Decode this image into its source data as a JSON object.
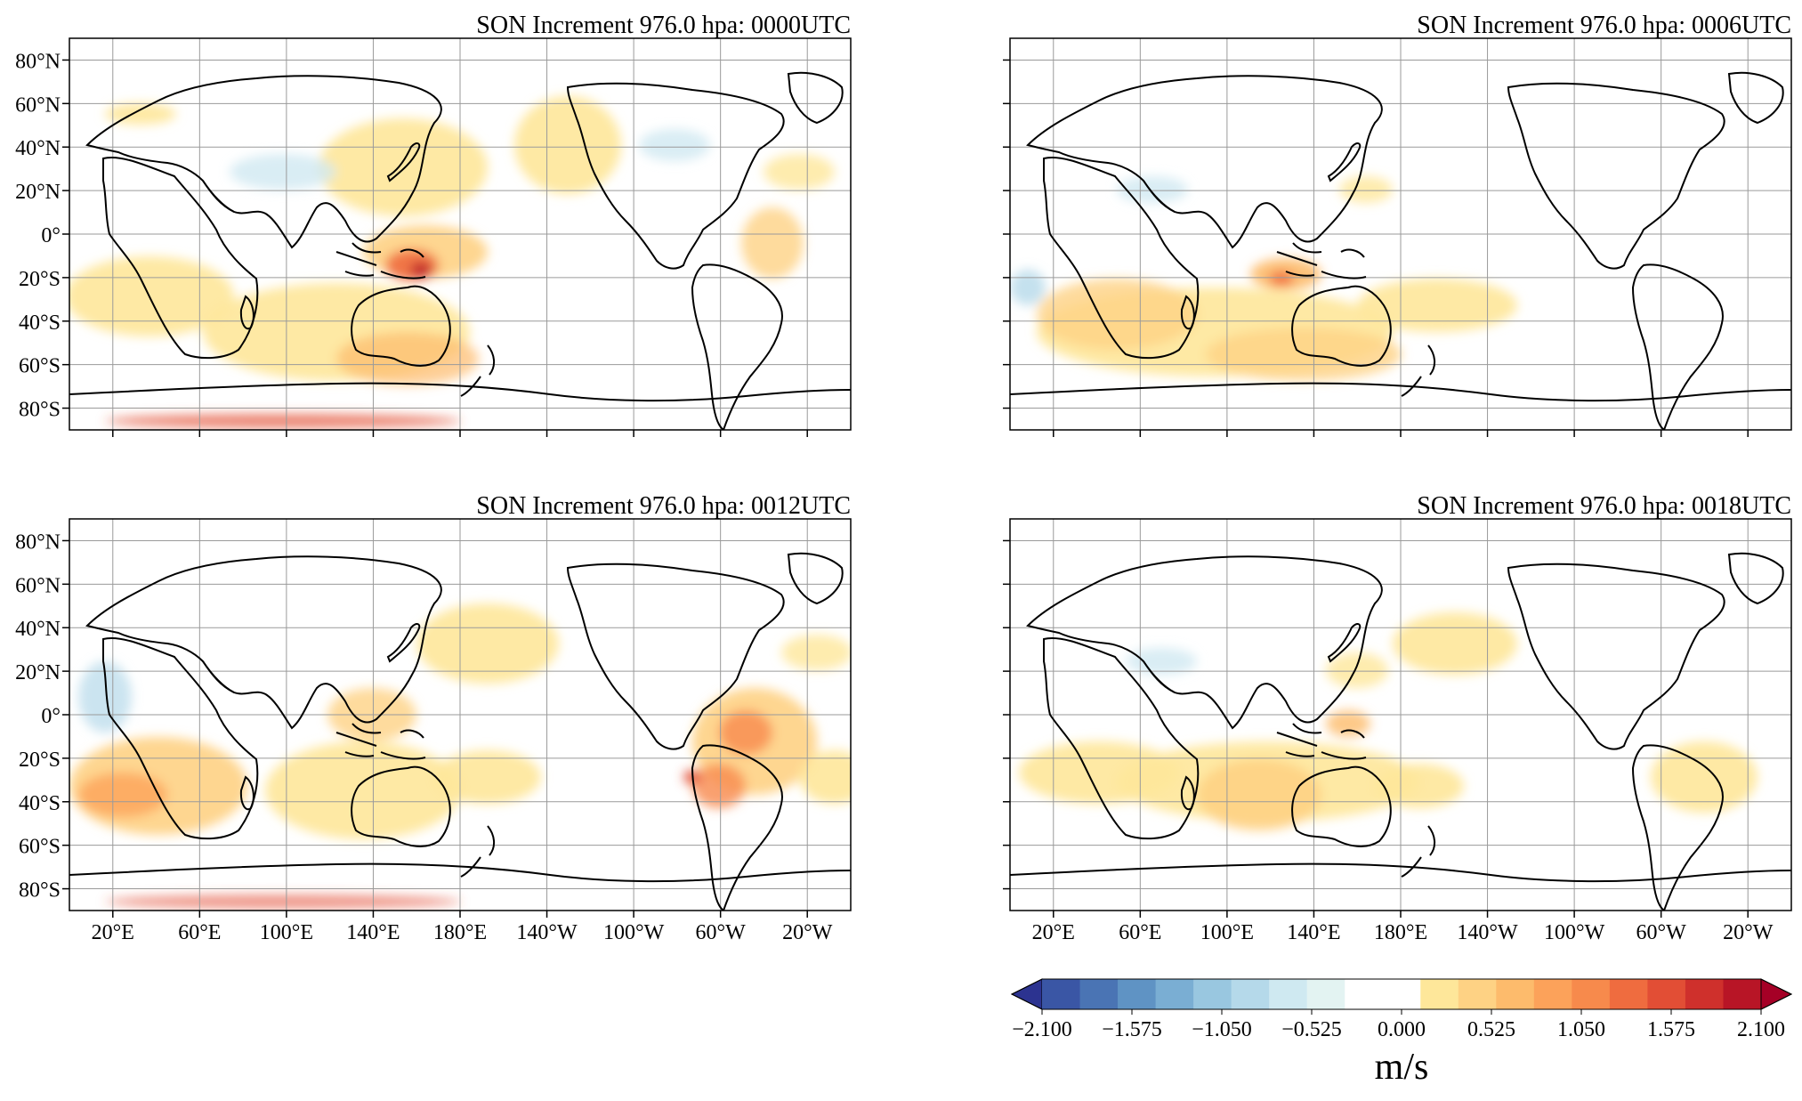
{
  "panels": [
    {
      "title": "SON Increment 976.0 hpa: 0000UTC",
      "show_y_labels": true,
      "show_x_labels": false
    },
    {
      "title": "SON Increment 976.0 hpa: 0006UTC",
      "show_y_labels": false,
      "show_x_labels": false
    },
    {
      "title": "SON Increment 976.0 hpa: 0012UTC",
      "show_y_labels": true,
      "show_x_labels": true
    },
    {
      "title": "SON Increment 976.0 hpa: 0018UTC",
      "show_y_labels": false,
      "show_x_labels": true
    }
  ],
  "y_tick_labels": [
    "80°N",
    "60°N",
    "40°N",
    "20°N",
    "0°",
    "20°S",
    "40°S",
    "60°S",
    "80°S"
  ],
  "x_tick_labels": [
    "20°E",
    "60°E",
    "100°E",
    "140°E",
    "180°E",
    "140°W",
    "100°W",
    "60°W",
    "20°W"
  ],
  "colorbar": {
    "tick_labels": [
      "−2.100",
      "−1.575",
      "−1.050",
      "−0.525",
      "0.000",
      "0.525",
      "1.050",
      "1.575",
      "2.100"
    ],
    "unit": "m/s",
    "colors": [
      "#2c3390",
      "#3a56a5",
      "#4a74b4",
      "#5f93c4",
      "#7aaed3",
      "#99c7e0",
      "#b5d9ea",
      "#cfe9f1",
      "#e3f3f2",
      "#ffffff",
      "#ffffff",
      "#fee79a",
      "#fed284",
      "#fdbb6c",
      "#fca25a",
      "#f78a4c",
      "#ef6c3f",
      "#e24e35",
      "#cf302c",
      "#b81526",
      "#a50026"
    ]
  }
}
